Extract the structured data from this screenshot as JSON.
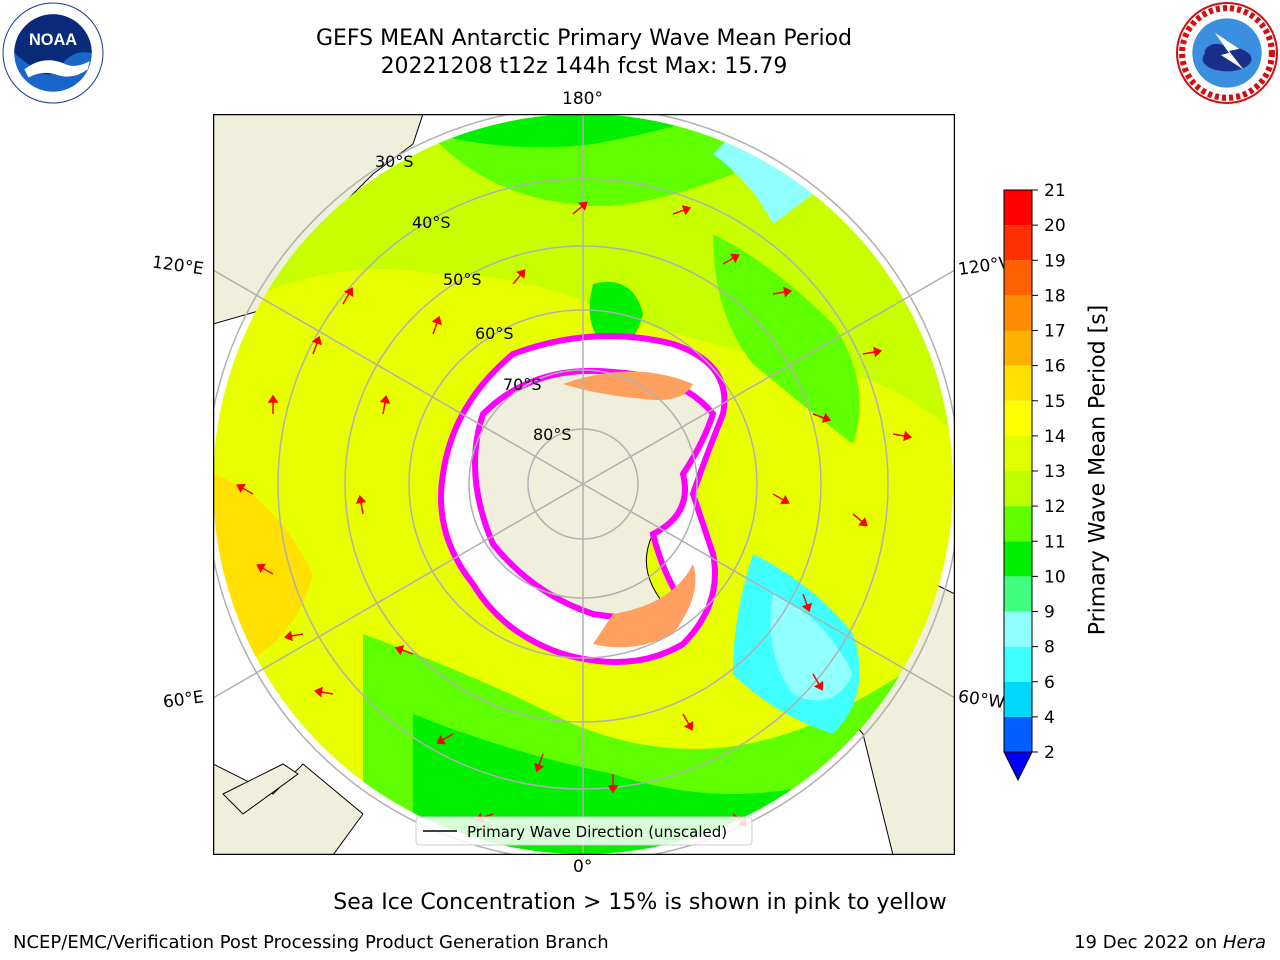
{
  "header": {
    "title_line1": "GEFS MEAN Antarctic Primary Wave Mean Period",
    "title_line2": "20221208 t12z 144h fcst   Max: 15.79"
  },
  "logos": {
    "noaa": {
      "icon": "noaa-logo",
      "text": "NOAA",
      "ring_text": "NATIONAL OCEANIC AND ATMOSPHERIC ADMINISTRATION · U.S. DEPARTMENT OF COMMERCE"
    },
    "nws": {
      "icon": "national-weather-service-logo",
      "ring_text": "NATIONAL WEATHER SERVICE"
    }
  },
  "map": {
    "projection": "south-polar-stereographic",
    "longitude_labels": {
      "top": "180°",
      "bottom": "0°",
      "upper_left": "120°E",
      "lower_left": "60°E",
      "upper_right": "120°W",
      "lower_right": "60°W"
    },
    "latitude_labels": [
      "30°S",
      "40°S",
      "50°S",
      "60°S",
      "70°S",
      "80°S"
    ],
    "legend_label": "Primary Wave Direction (unscaled)",
    "arrow_color": "#ff0000",
    "land_color": "#efefdb",
    "ice_colors": [
      "#ff00ff",
      "#ff88ff",
      "#ffa060",
      "#ffffff"
    ]
  },
  "colorbar": {
    "label": "Primary Wave Mean Period [s]",
    "ticks": [
      "2",
      "4",
      "6",
      "8",
      "9",
      "10",
      "11",
      "12",
      "13",
      "14",
      "15",
      "16",
      "17",
      "18",
      "19",
      "20",
      "21"
    ],
    "colors": [
      "#0060ff",
      "#00d8ff",
      "#40ffff",
      "#90ffff",
      "#40ff80",
      "#00f000",
      "#60ff00",
      "#c0ff00",
      "#e0ff00",
      "#ffff00",
      "#ffe000",
      "#ffb000",
      "#ff8c00",
      "#ff6000",
      "#ff3000",
      "#ff0000"
    ],
    "extend_min_color": "#0000ff"
  },
  "caption": "Sea Ice Concentration > 15% is shown in pink to yellow",
  "footer": {
    "left": "NCEP/EMC/Verification Post Processing Product Generation Branch",
    "right_date": "19 Dec 2022 on ",
    "right_host": "Hera"
  }
}
